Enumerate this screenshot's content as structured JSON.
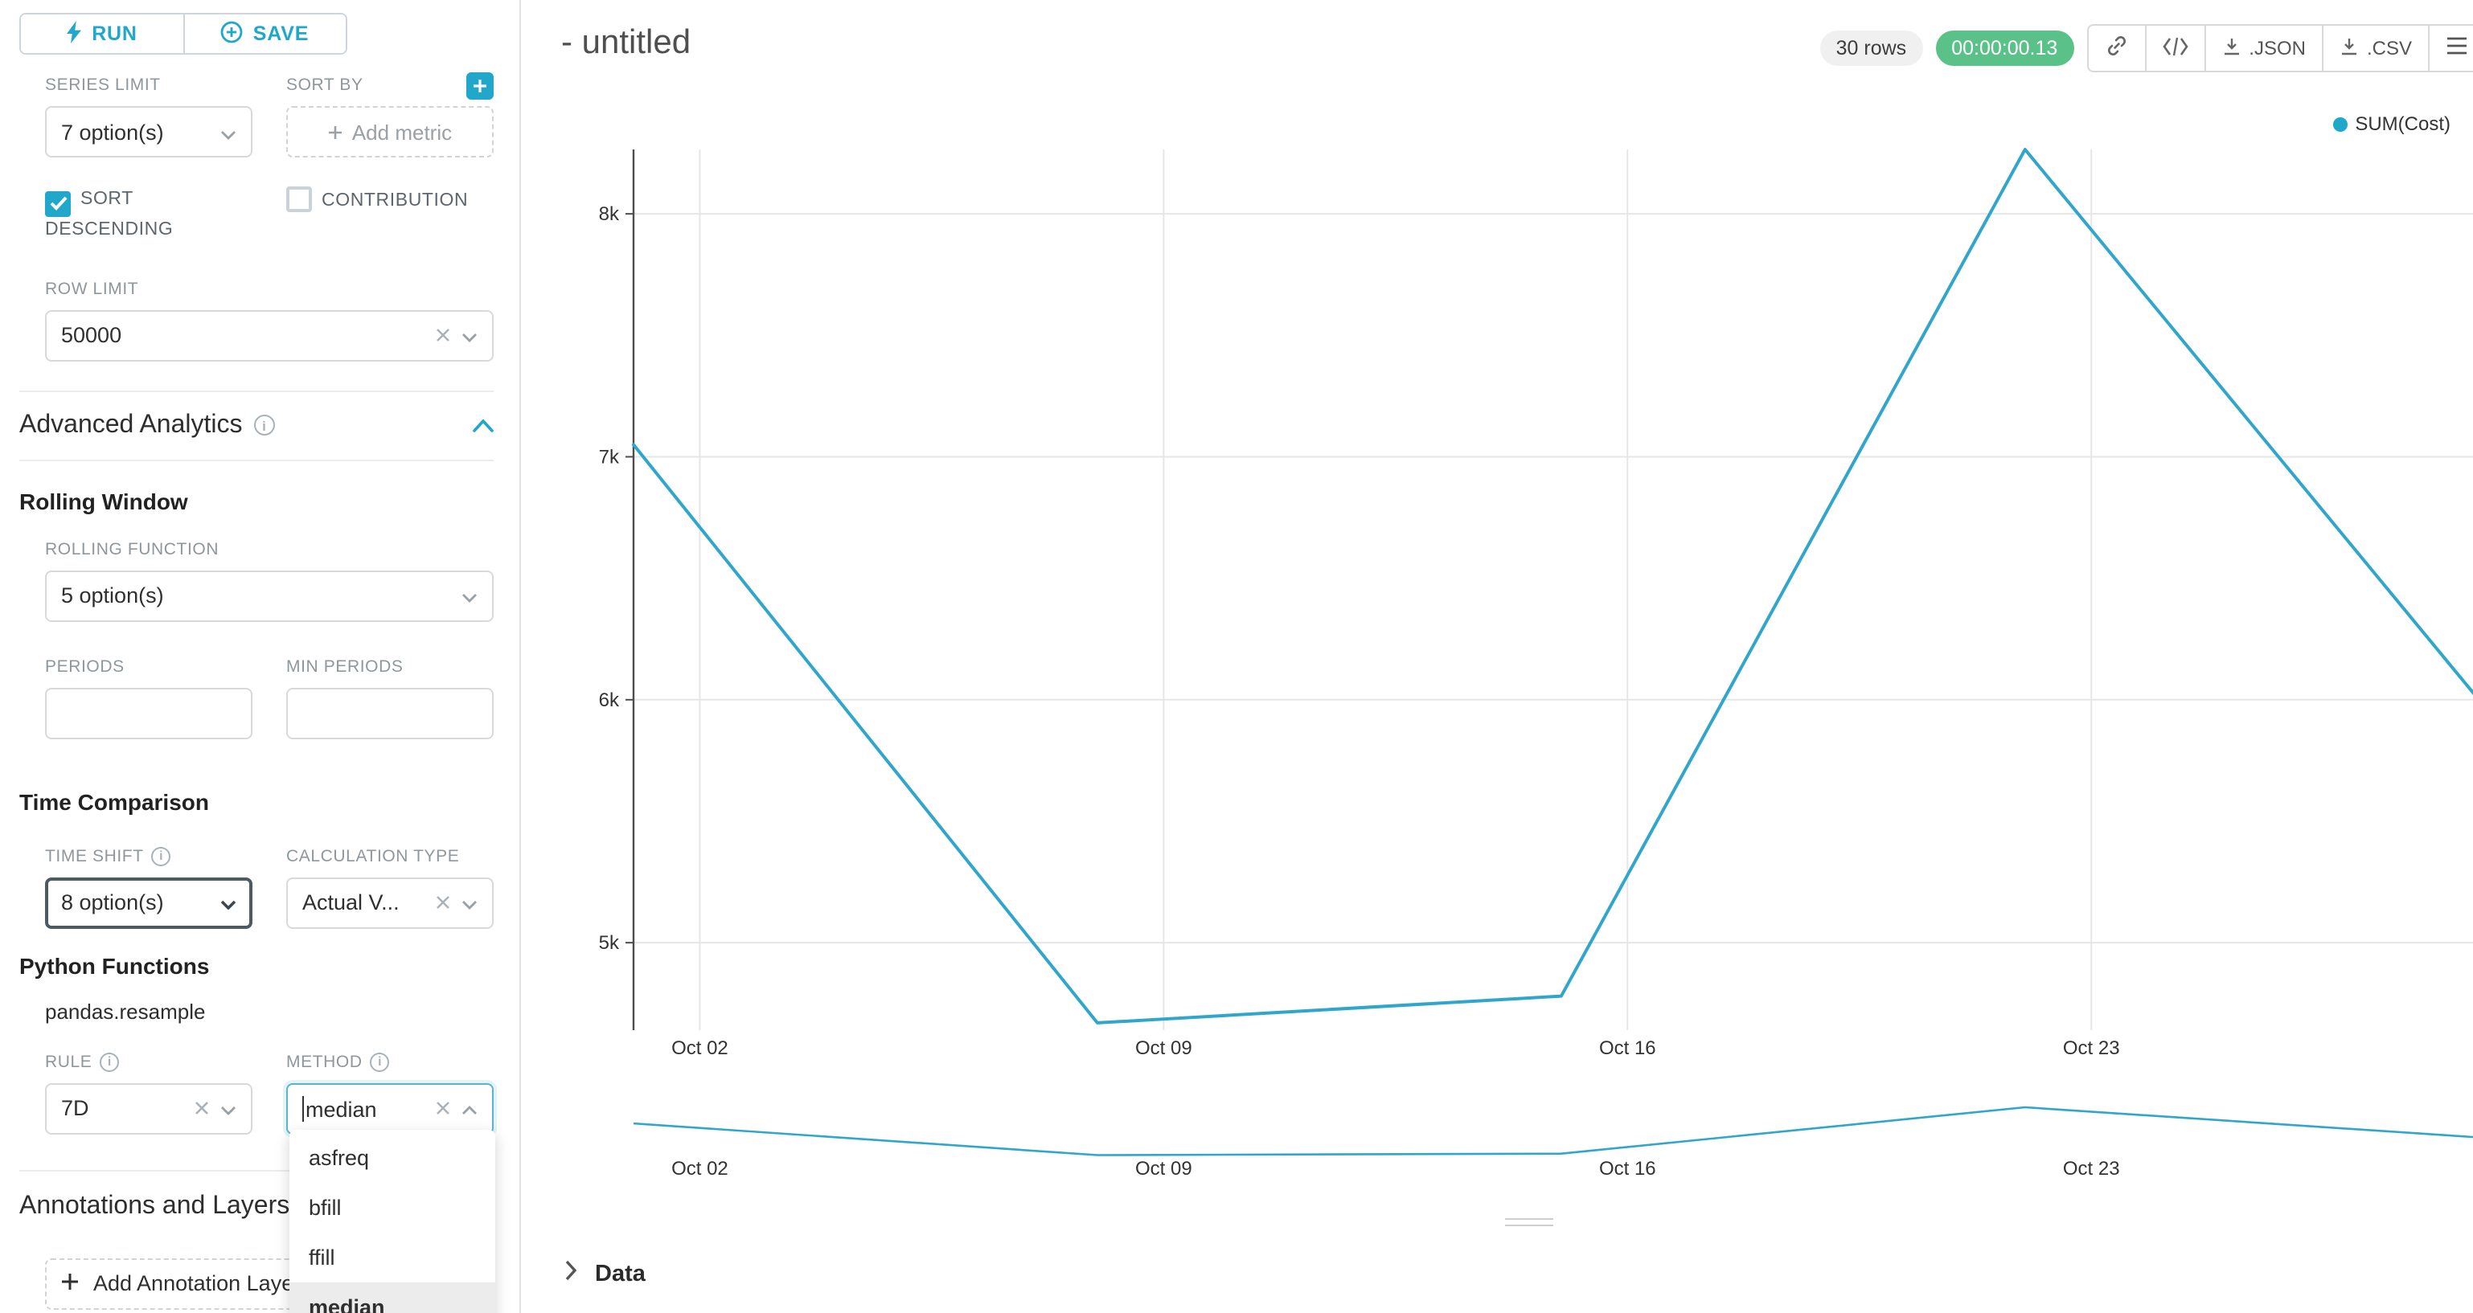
{
  "sidebar": {
    "run_label": "RUN",
    "save_label": "SAVE",
    "series_limit": {
      "label": "SERIES LIMIT",
      "value": "7 option(s)"
    },
    "sort_by": {
      "label": "SORT BY",
      "placeholder": "Add metric"
    },
    "sort_descending": {
      "label": "SORT DESCENDING",
      "checked": true
    },
    "contribution": {
      "label": "CONTRIBUTION",
      "checked": false
    },
    "row_limit": {
      "label": "ROW LIMIT",
      "value": "50000"
    },
    "advanced_analytics": {
      "title": "Advanced Analytics"
    },
    "rolling_window": {
      "title": "Rolling Window"
    },
    "rolling_function": {
      "label": "ROLLING FUNCTION",
      "value": "5 option(s)"
    },
    "periods": {
      "label": "PERIODS",
      "value": ""
    },
    "min_periods": {
      "label": "MIN PERIODS",
      "value": ""
    },
    "time_comparison": {
      "title": "Time Comparison"
    },
    "time_shift": {
      "label": "TIME SHIFT",
      "value": "8 option(s)"
    },
    "calculation_type": {
      "label": "CALCULATION TYPE",
      "value": "Actual V..."
    },
    "python_functions": {
      "title": "Python Functions",
      "subtitle": "pandas.resample"
    },
    "rule": {
      "label": "RULE",
      "value": "7D"
    },
    "method": {
      "label": "METHOD",
      "value": "median"
    },
    "method_dropdown": {
      "options": [
        "asfreq",
        "bfill",
        "ffill",
        "median"
      ],
      "highlighted": "median"
    },
    "annotations": {
      "title": "Annotations and Layers",
      "add_label": "Add Annotation Layer"
    }
  },
  "header": {
    "title": "- untitled",
    "rows_badge": "30 rows",
    "timer": "00:00:00.13",
    "json_label": ".JSON",
    "csv_label": ".CSV"
  },
  "data_panel": {
    "title": "Data"
  },
  "icons": [
    "bolt",
    "plus-circle",
    "plus",
    "info",
    "chevron-down",
    "chevron-up",
    "clear-x",
    "checkbox-check",
    "link",
    "embed-code",
    "download",
    "menu",
    "legend-dot",
    "caret-right",
    "drag-handle",
    "text-cursor"
  ],
  "colors": {
    "accent": "#20a7c9",
    "series_line": "#31a6cb",
    "legend_dot": "#1fa8c9",
    "timer_badge_bg": "#5ac189",
    "rows_badge_bg": "#f0f0f0",
    "grid": "#e6e6e6",
    "axis": "#4d4d4d"
  },
  "chart_data": {
    "type": "line",
    "title": "- untitled",
    "legend_position": "top-right",
    "grid": true,
    "x_tick_labels": [
      "Oct 02",
      "Oct 09",
      "Oct 16",
      "Oct 23"
    ],
    "x_tick_days": [
      1,
      8,
      15,
      22
    ],
    "y_tick_labels": [
      "5k",
      "6k",
      "7k",
      "8k"
    ],
    "y_tick_values": [
      5000,
      6000,
      7000,
      8000
    ],
    "y_range": [
      4640,
      8265
    ],
    "series": [
      {
        "name": "SUM(Cost)",
        "color": "#31a6cb",
        "x_days": [
          0,
          7,
          14,
          21,
          28
        ],
        "values": [
          7050,
          4670,
          4780,
          8265,
          5950
        ]
      }
    ],
    "mini_preview": true
  }
}
